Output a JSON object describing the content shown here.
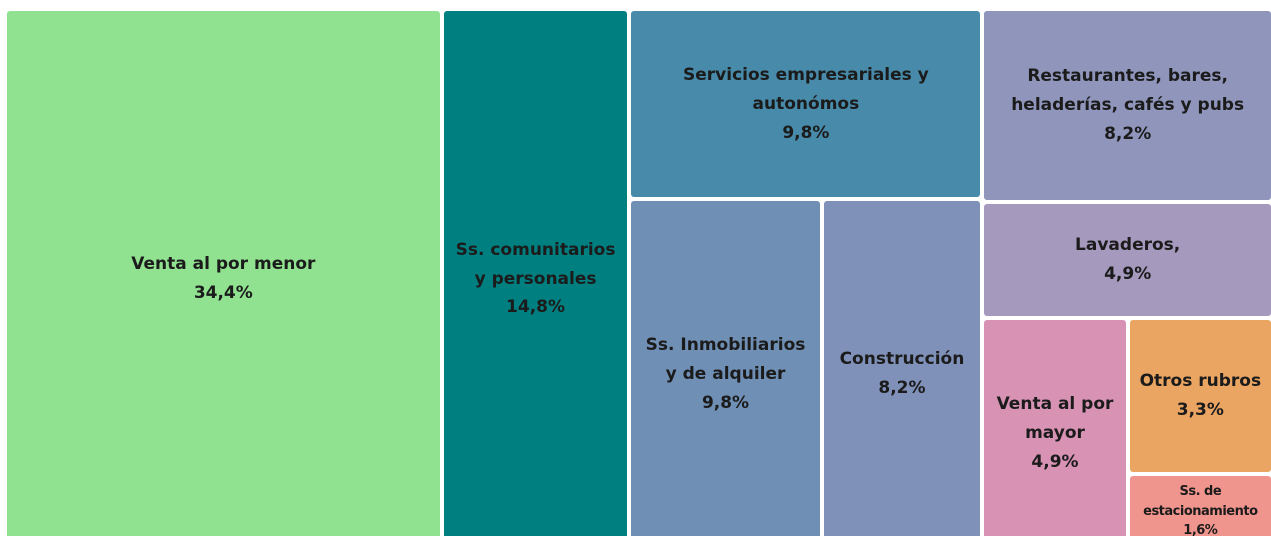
{
  "chart_data": {
    "type": "treemap",
    "categories": [
      "Venta al por menor",
      "Ss. comunitarios y personales",
      "Servicios empresariales y autonómos",
      "Ss. Inmobiliarios y de alquiler",
      "Construcción",
      "Restaurantes, bares, heladerías, cafés y pubs",
      "Lavaderos,",
      "Venta al por mayor",
      "Otros rubros",
      "Ss. de estacionamiento"
    ],
    "values": [
      34.4,
      14.8,
      9.8,
      9.8,
      8.2,
      8.2,
      4.9,
      4.9,
      3.3,
      1.6
    ],
    "value_labels": [
      "34,4%",
      "14,8%",
      "9,8%",
      "9,8%",
      "8,2%",
      "8,2%",
      "4,9%",
      "4,9%",
      "3,3%",
      "1,6%"
    ],
    "colors": [
      "#90e290",
      "#007f80",
      "#478aa9",
      "#6f8fb5",
      "#8091b9",
      "#8f95bb",
      "#a599be",
      "#d792b4",
      "#eba563",
      "#f0958d"
    ]
  }
}
